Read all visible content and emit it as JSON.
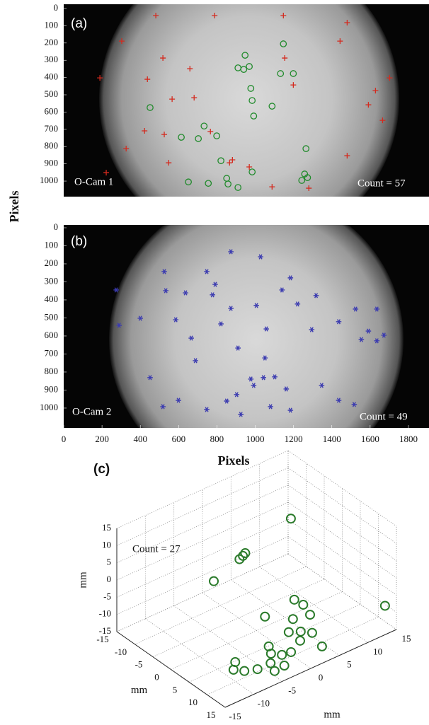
{
  "chart_data": [
    {
      "type": "scatter",
      "panel_label": "(a)",
      "camera_label": "O-Cam 1",
      "count_label": "Count = 57",
      "y_label": "Pixels",
      "xlim": [
        0,
        1900
      ],
      "ylim": [
        0,
        1090
      ],
      "y_reversed": true,
      "yticks": [
        0,
        100,
        200,
        300,
        400,
        500,
        600,
        700,
        800,
        900,
        1000
      ],
      "series": [
        {
          "marker": "plus",
          "color": "#d42a1e",
          "x": [
            481,
            788,
            1147,
            1480,
            303,
            1443,
            518,
            1154,
            659,
            1702,
            189,
            437,
            1628,
            681,
            1199,
            566,
            1591,
            1665,
            422,
            525,
            326,
            1480,
            548,
            866,
            969,
            1088,
            222,
            881,
            766,
            1280
          ],
          "y": [
            41,
            41,
            41,
            82,
            189,
            189,
            287,
            287,
            349,
            402,
            402,
            410,
            476,
            517,
            443,
            525,
            558,
            648,
            709,
            730,
            812,
            853,
            894,
            894,
            918,
            1033,
            951,
            877,
            713,
            1041
          ]
        },
        {
          "marker": "circle",
          "color": "#1f8a2a",
          "x": [
            1147,
            947,
            910,
            940,
            969,
            1132,
            1199,
            977,
            984,
            1088,
            451,
            992,
            733,
            614,
            703,
            799,
            1265,
            821,
            984,
            1258,
            1273,
            1243,
            651,
            858,
            910,
            755,
            851
          ],
          "y": [
            205,
            271,
            344,
            353,
            336,
            377,
            377,
            463,
            533,
            566,
            574,
            623,
            681,
            746,
            754,
            738,
            812,
            882,
            947,
            959,
            980,
            996,
            1005,
            1017,
            1037,
            1013,
            984
          ]
        }
      ]
    },
    {
      "type": "scatter",
      "panel_label": "(b)",
      "camera_label": "O-Cam 2",
      "count_label": "Count = 49",
      "x_label": "Pixels",
      "xlim": [
        0,
        1900
      ],
      "ylim": [
        0,
        1110
      ],
      "y_reversed": true,
      "xticks": [
        0,
        200,
        400,
        600,
        800,
        1000,
        1200,
        1400,
        1600,
        1800
      ],
      "yticks": [
        0,
        100,
        200,
        300,
        400,
        500,
        600,
        700,
        800,
        900,
        1000
      ],
      "series": [
        {
          "marker": "asterisk",
          "color": "#3b3bb0",
          "x": [
            873,
            1028,
            525,
            747,
            1184,
            791,
            1140,
            1318,
            777,
            1221,
            1006,
            1524,
            1635,
            636,
            533,
            873,
            585,
            821,
            1436,
            289,
            400,
            1058,
            1295,
            1554,
            1635,
            1672,
            666,
            910,
            1051,
            688,
            977,
            1043,
            1102,
            992,
            1162,
            903,
            851,
            518,
            451,
            1436,
            1517,
            1184,
            747,
            599,
            925,
            1080,
            1347,
            274,
            1591
          ],
          "y": [
            133,
            161,
            243,
            243,
            278,
            314,
            345,
            376,
            372,
            423,
            431,
            451,
            451,
            361,
            349,
            447,
            510,
            533,
            521,
            541,
            502,
            561,
            565,
            620,
            627,
            596,
            612,
            667,
            722,
            737,
            839,
            831,
            827,
            874,
            894,
            925,
            961,
            992,
            831,
            957,
            980,
            1012,
            1008,
            957,
            1035,
            992,
            874,
            345,
            573
          ]
        }
      ]
    },
    {
      "type": "scatter3d",
      "panel_label": "(c)",
      "count_label": "Count = 27",
      "x_label": "mm",
      "y_label": "mm",
      "z_label": "mm",
      "xlim": [
        -15,
        15
      ],
      "ylim": [
        -15,
        15
      ],
      "zlim": [
        -15,
        15
      ],
      "xticks": [
        -15,
        -10,
        -5,
        0,
        5,
        10,
        15
      ],
      "yticks": [
        -15,
        -10,
        -5,
        0,
        5,
        10,
        15
      ],
      "zticks": [
        -15,
        -10,
        -5,
        0,
        5,
        10,
        15
      ],
      "grid": true,
      "series": [
        {
          "marker": "circle",
          "color": "#2a7a2a",
          "x": [
            0,
            0,
            0,
            0,
            0,
            15,
            0,
            5,
            5,
            5,
            5,
            10,
            10,
            10,
            10,
            14,
            10,
            10,
            10,
            10,
            14,
            14,
            14,
            14,
            14,
            14,
            14
          ],
          "y": [
            6,
            -2,
            -2.4,
            -3,
            -7.5,
            13,
            6.6,
            5,
            -1.7,
            3.2,
            6.2,
            1.4,
            -0.7,
            3.4,
            1.3,
            2.6,
            -4.2,
            -3.8,
            -1.9,
            -0.3,
            -6.4,
            -12.6,
            -12.9,
            -11,
            -8.7,
            -5.7,
            -4
          ],
          "z": [
            13,
            9,
            8.5,
            8,
            5,
            -6.6,
            -11,
            -7.6,
            -6,
            -10.4,
            -11.4,
            -9,
            -7.6,
            -10.9,
            -11.6,
            -11.3,
            -9.1,
            -11.5,
            -13.3,
            -13.7,
            -9.4,
            -4.4,
            -6.4,
            -8.2,
            -9.4,
            -12.2,
            -11.9
          ]
        }
      ]
    }
  ]
}
